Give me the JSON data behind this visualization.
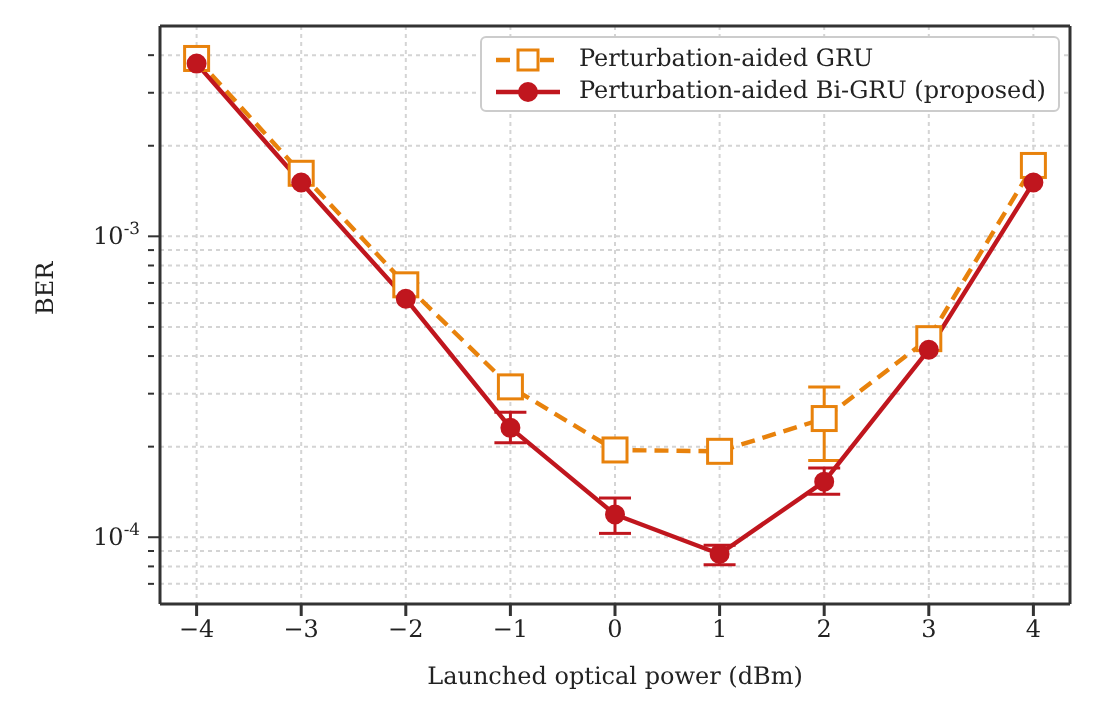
{
  "chart_data": {
    "type": "line",
    "xlabel": "Launched optical power (dBm)",
    "ylabel": "BER",
    "x": [
      -4,
      -3,
      -2,
      -1,
      0,
      1,
      2,
      3,
      4
    ],
    "xlim": [
      -4.35,
      4.35
    ],
    "xticks": [
      -4,
      -3,
      -2,
      -1,
      0,
      1,
      2,
      3,
      4
    ],
    "log": "y",
    "ylim": [
      6e-05,
      0.005
    ],
    "yticks": [
      {
        "value": 7e-05,
        "label": null
      },
      {
        "value": 8e-05,
        "label": null
      },
      {
        "value": 9e-05,
        "label": null
      },
      {
        "value": 0.0001,
        "label": "10$^{-4}$"
      },
      {
        "value": 0.0002,
        "label": null
      },
      {
        "value": 0.0003,
        "label": null
      },
      {
        "value": 0.0004,
        "label": null
      },
      {
        "value": 0.0005,
        "label": null
      },
      {
        "value": 0.0006,
        "label": null
      },
      {
        "value": 0.0007,
        "label": null
      },
      {
        "value": 0.0008,
        "label": null
      },
      {
        "value": 0.0009,
        "label": null
      },
      {
        "value": 0.001,
        "label": "10$^{-3}$"
      },
      {
        "value": 0.002,
        "label": null
      },
      {
        "value": 0.003,
        "label": null
      },
      {
        "value": 0.004,
        "label": null
      }
    ],
    "grid": true,
    "legend": "top right",
    "series": [
      {
        "name": "Perturbation-aided GRU",
        "color": "#e8820c",
        "marker": "square",
        "line_style": "dashed",
        "values": [
          0.0039,
          0.00162,
          0.00069,
          0.000316,
          0.000195,
          0.000193,
          0.000248,
          0.000457,
          0.00172
        ],
        "errors": [
          null,
          null,
          null,
          null,
          null,
          null,
          [
            0.00018,
            0.000316
          ],
          null,
          null
        ]
      },
      {
        "name": "Perturbation-aided Bi-GRU (proposed)",
        "color": "#c0161e",
        "marker": "circle",
        "line_style": "solid",
        "values": [
          0.00375,
          0.00151,
          0.00062,
          0.000231,
          0.000119,
          8.8e-05,
          0.000153,
          0.00042,
          0.00151
        ],
        "errors": [
          null,
          null,
          null,
          [
            0.000206,
            0.00026
          ],
          [
            0.000103,
            0.000135
          ],
          [
            8.1e-05,
            9.4e-05
          ],
          [
            0.000139,
            0.00017
          ],
          null,
          null
        ]
      }
    ]
  }
}
